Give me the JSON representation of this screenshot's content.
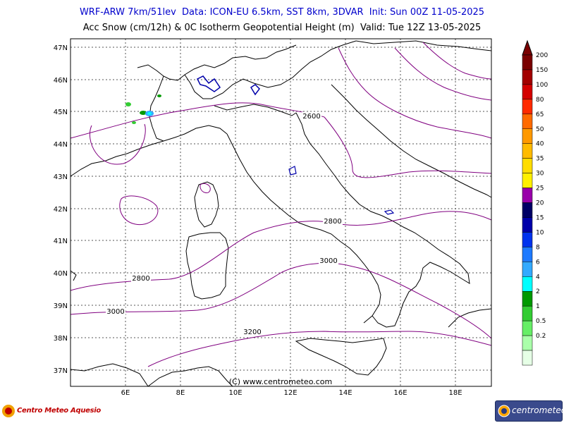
{
  "header": {
    "title_line_1": "WRF-ARW 7km/51lev  Data: ICON-EU 6.5km, SST 8km, 3DVAR  Init: Sun 00Z 11-05-2025",
    "title_line_2": "Acc Snow (cm/12h) & 0C Isotherm Geopotential Height (m)  Valid: Tue 12Z 13-05-2025"
  },
  "map": {
    "lat_labels": [
      "47N",
      "46N",
      "45N",
      "44N",
      "43N",
      "42N",
      "41N",
      "40N",
      "39N",
      "38N",
      "37N"
    ],
    "lon_labels": [
      "6E",
      "8E",
      "10E",
      "12E",
      "14E",
      "16E",
      "18E"
    ],
    "contour_labels": [
      "2600",
      "2800",
      "3000",
      "2800",
      "3000",
      "3200"
    ],
    "watermark": "(C) www.centrometeo.com"
  },
  "colorbar": {
    "labels": [
      "200",
      "150",
      "100",
      "80",
      "65",
      "50",
      "40",
      "35",
      "30",
      "25",
      "20",
      "15",
      "10",
      "8",
      "6",
      "4",
      "2",
      "1",
      "0.5",
      "0.2"
    ],
    "colors": [
      "#7a0000",
      "#a30000",
      "#d40000",
      "#ff2a00",
      "#ff6a00",
      "#ff9900",
      "#ffbb00",
      "#ffdd00",
      "#fff000",
      "#9900aa",
      "#000066",
      "#0000aa",
      "#0033ee",
      "#1e7aff",
      "#33aaff",
      "#00ffff",
      "#009900",
      "#33cc33",
      "#66ee66",
      "#aaffaa",
      "#e6ffe6"
    ]
  },
  "logos": {
    "left_text": "Centro Meteo Aquesio",
    "right_text": "centrometeo"
  }
}
